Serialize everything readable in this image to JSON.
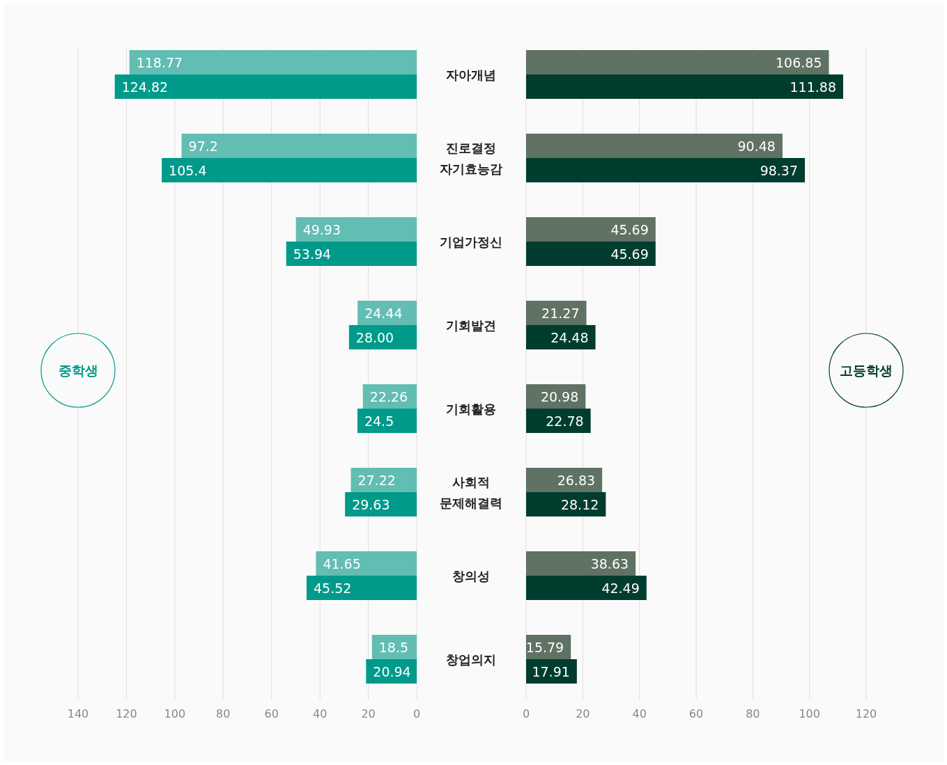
{
  "chart_data": [
    {
      "type": "bar",
      "orientation": "horizontal",
      "title": "중학생",
      "categories": [
        "자아개념",
        "진로결정 자기효능감",
        "기업가정신",
        "기회발견",
        "기회활용",
        "사회적 문제해결력",
        "창의성",
        "창업의지"
      ],
      "series": [
        {
          "color": "#62bdb3",
          "values": [
            118.77,
            97.2,
            49.93,
            24.44,
            22.26,
            27.22,
            41.65,
            18.5
          ],
          "value_labels": [
            "118.77",
            "97.2",
            "49.93",
            "24.44",
            "22.26",
            "27.22",
            "41.65",
            "18.5"
          ]
        },
        {
          "color": "#009a8a",
          "values": [
            124.82,
            105.4,
            53.94,
            28.0,
            24.5,
            29.63,
            45.52,
            20.94
          ],
          "value_labels": [
            "124.82",
            "105.4",
            "53.94",
            "28.00",
            "24.5",
            "29.63",
            "45.52",
            "20.94"
          ]
        }
      ],
      "xlim": [
        140,
        0
      ],
      "xticks": [
        140,
        120,
        100,
        80,
        60,
        40,
        20,
        0
      ],
      "grid": "x"
    },
    {
      "type": "bar",
      "orientation": "horizontal",
      "title": "고등학생",
      "categories": [
        null,
        null,
        null,
        null,
        null,
        null,
        null,
        null
      ],
      "series": [
        {
          "color": "#5f7264",
          "values": [
            106.85,
            90.48,
            45.69,
            21.27,
            20.98,
            26.83,
            38.63,
            15.79
          ],
          "value_labels": [
            "106.85",
            "90.48",
            "45.69",
            "21.27",
            "20.98",
            "26.83",
            "38.63",
            "15.79"
          ]
        },
        {
          "color": "#003d2e",
          "values": [
            111.88,
            98.37,
            45.69,
            24.48,
            22.78,
            28.12,
            42.49,
            17.91
          ],
          "value_labels": [
            "111.88",
            "98.37",
            "45.69",
            "24.48",
            "22.78",
            "28.12",
            "42.49",
            "17.91"
          ]
        }
      ],
      "xlim": [
        0,
        120
      ],
      "xticks": [
        0,
        20,
        40,
        60,
        80,
        100,
        120
      ],
      "grid": "x",
      "tick_labels": "x"
    }
  ]
}
